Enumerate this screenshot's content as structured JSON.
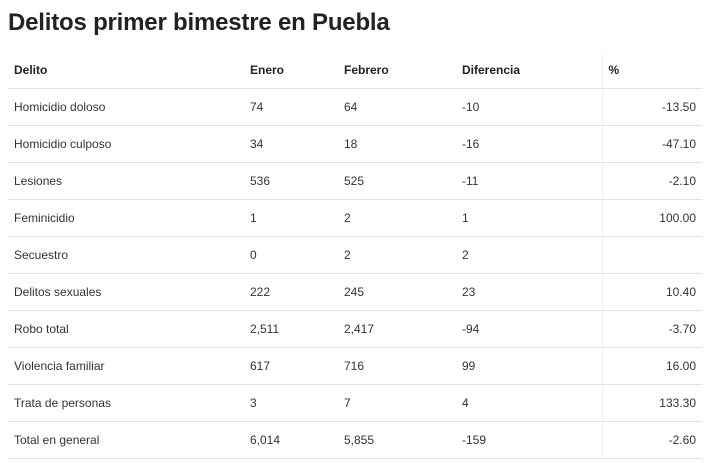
{
  "title": "Delitos primer bimestre en Puebla",
  "table": {
    "headers": [
      "Delito",
      "Enero",
      "Febrero",
      "Diferencia",
      "%"
    ],
    "rows": [
      [
        "Homicidio doloso",
        "74",
        "64",
        "-10",
        "-13.50"
      ],
      [
        "Homicidio culposo",
        "34",
        "18",
        "-16",
        "-47.10"
      ],
      [
        "Lesiones",
        "536",
        "525",
        "-11",
        "-2.10"
      ],
      [
        "Feminicidio",
        "1",
        "2",
        "1",
        "100.00"
      ],
      [
        "Secuestro",
        "0",
        "2",
        "2",
        ""
      ],
      [
        "Delitos sexuales",
        "222",
        "245",
        "23",
        "10.40"
      ],
      [
        "Robo total",
        "2,511",
        "2,417",
        "-94",
        "-3.70"
      ],
      [
        "Violencia familiar",
        "617",
        "716",
        "99",
        "16.00"
      ],
      [
        "Trata de personas",
        "3",
        "7",
        "4",
        "133.30"
      ],
      [
        "Total en general",
        "6,014",
        "5,855",
        "-159",
        "-2.60"
      ]
    ]
  }
}
